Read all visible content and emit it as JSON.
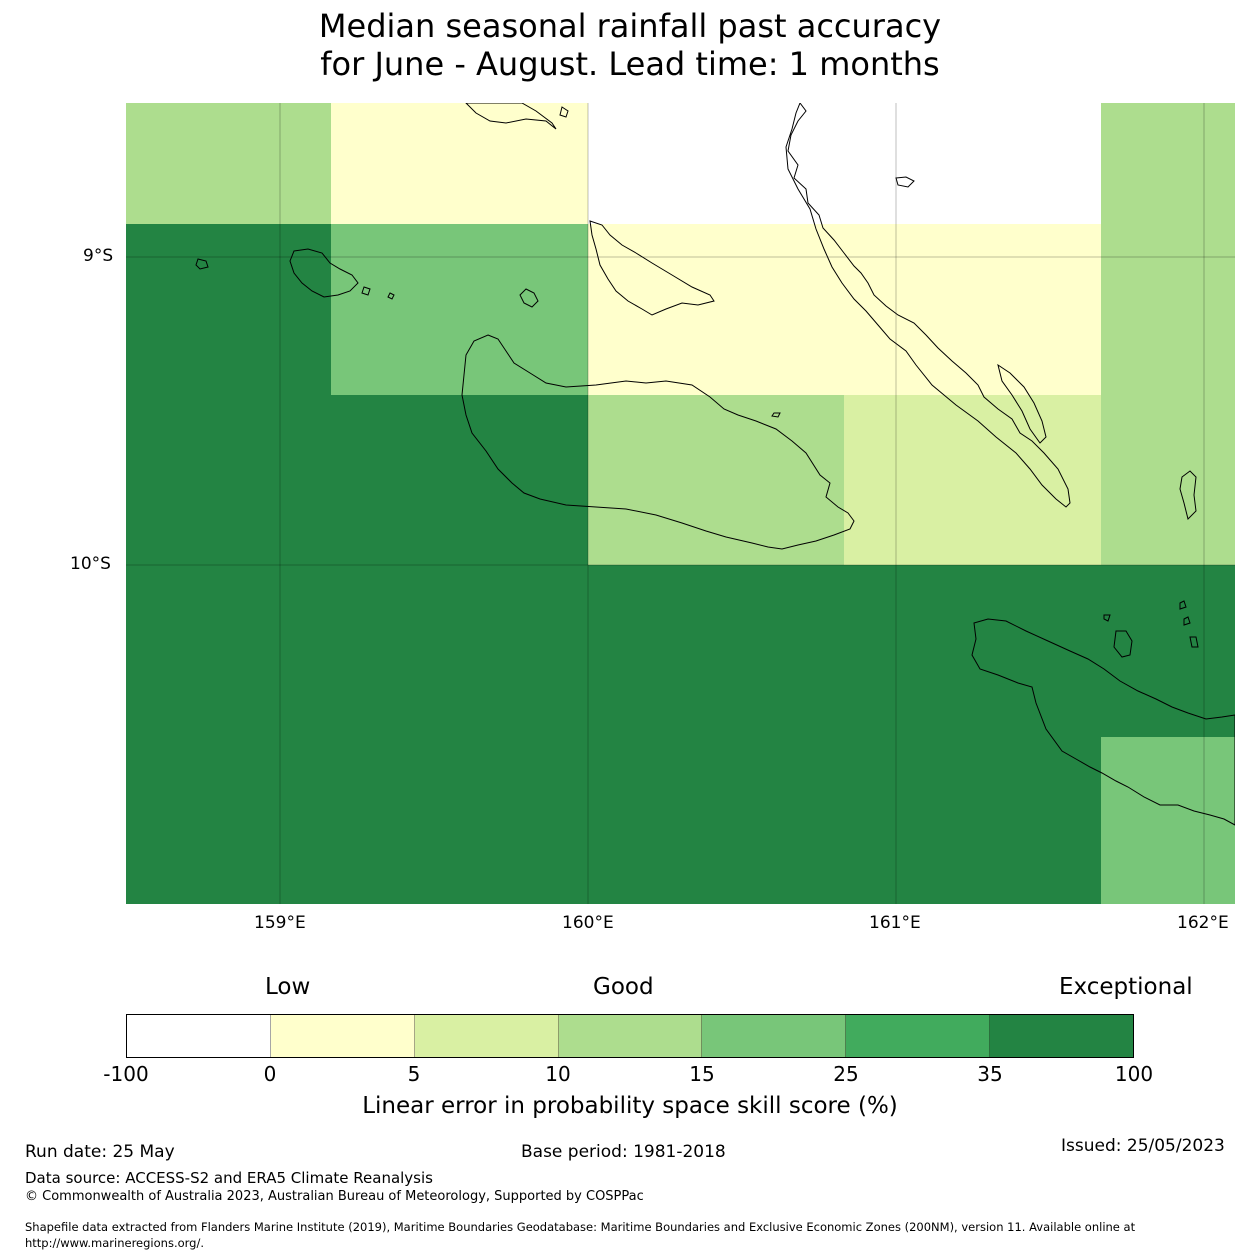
{
  "title": {
    "line1": "Median seasonal rainfall past accuracy",
    "line2": "for June - August. Lead time: 1 months"
  },
  "map": {
    "lon_ticks": [
      "159°E",
      "160°E",
      "161°E",
      "162°E"
    ],
    "lat_ticks": [
      "9°S",
      "10°S"
    ],
    "skill_grid": [
      [
        10,
        0,
        0,
        -100,
        -100,
        -100,
        -100,
        10
      ],
      [
        35,
        15,
        15,
        0,
        0,
        0,
        0,
        10
      ],
      [
        50,
        35,
        35,
        10,
        10,
        5,
        5,
        10
      ],
      [
        50,
        35,
        35,
        35,
        35,
        35,
        35,
        35
      ],
      [
        35,
        35,
        35,
        35,
        35,
        50,
        50,
        15
      ]
    ]
  },
  "legend": {
    "qualitative": [
      "Low",
      "Good",
      "Exceptional"
    ],
    "ticks": [
      "-100",
      "0",
      "5",
      "10",
      "15",
      "25",
      "35",
      "100"
    ],
    "colors": [
      "#ffffff",
      "#ffffcc",
      "#d9f0a3",
      "#addd8e",
      "#78c679",
      "#41ab5d",
      "#238443"
    ],
    "label": "Linear error in probability space skill score (%)"
  },
  "footer": {
    "run_date": "Run date: 25 May",
    "base_period": "Base period: 1981-2018",
    "issued": "Issued: 25/05/2023",
    "data_source": "Data source: ACCESS-S2 and ERA5 Climate Reanalysis",
    "copyright": "© Commonwealth of Australia 2023, Australian Bureau of Meteorology, Supported by COSPPac",
    "shapefile_line1": "Shapefile data extracted from Flanders Marine Institute (2019), Maritime Boundaries Geodatabase: Maritime Boundaries and Exclusive Economic Zones (200NM), version 11. Available online at",
    "shapefile_line2": "http://www.marineregions.org/."
  }
}
